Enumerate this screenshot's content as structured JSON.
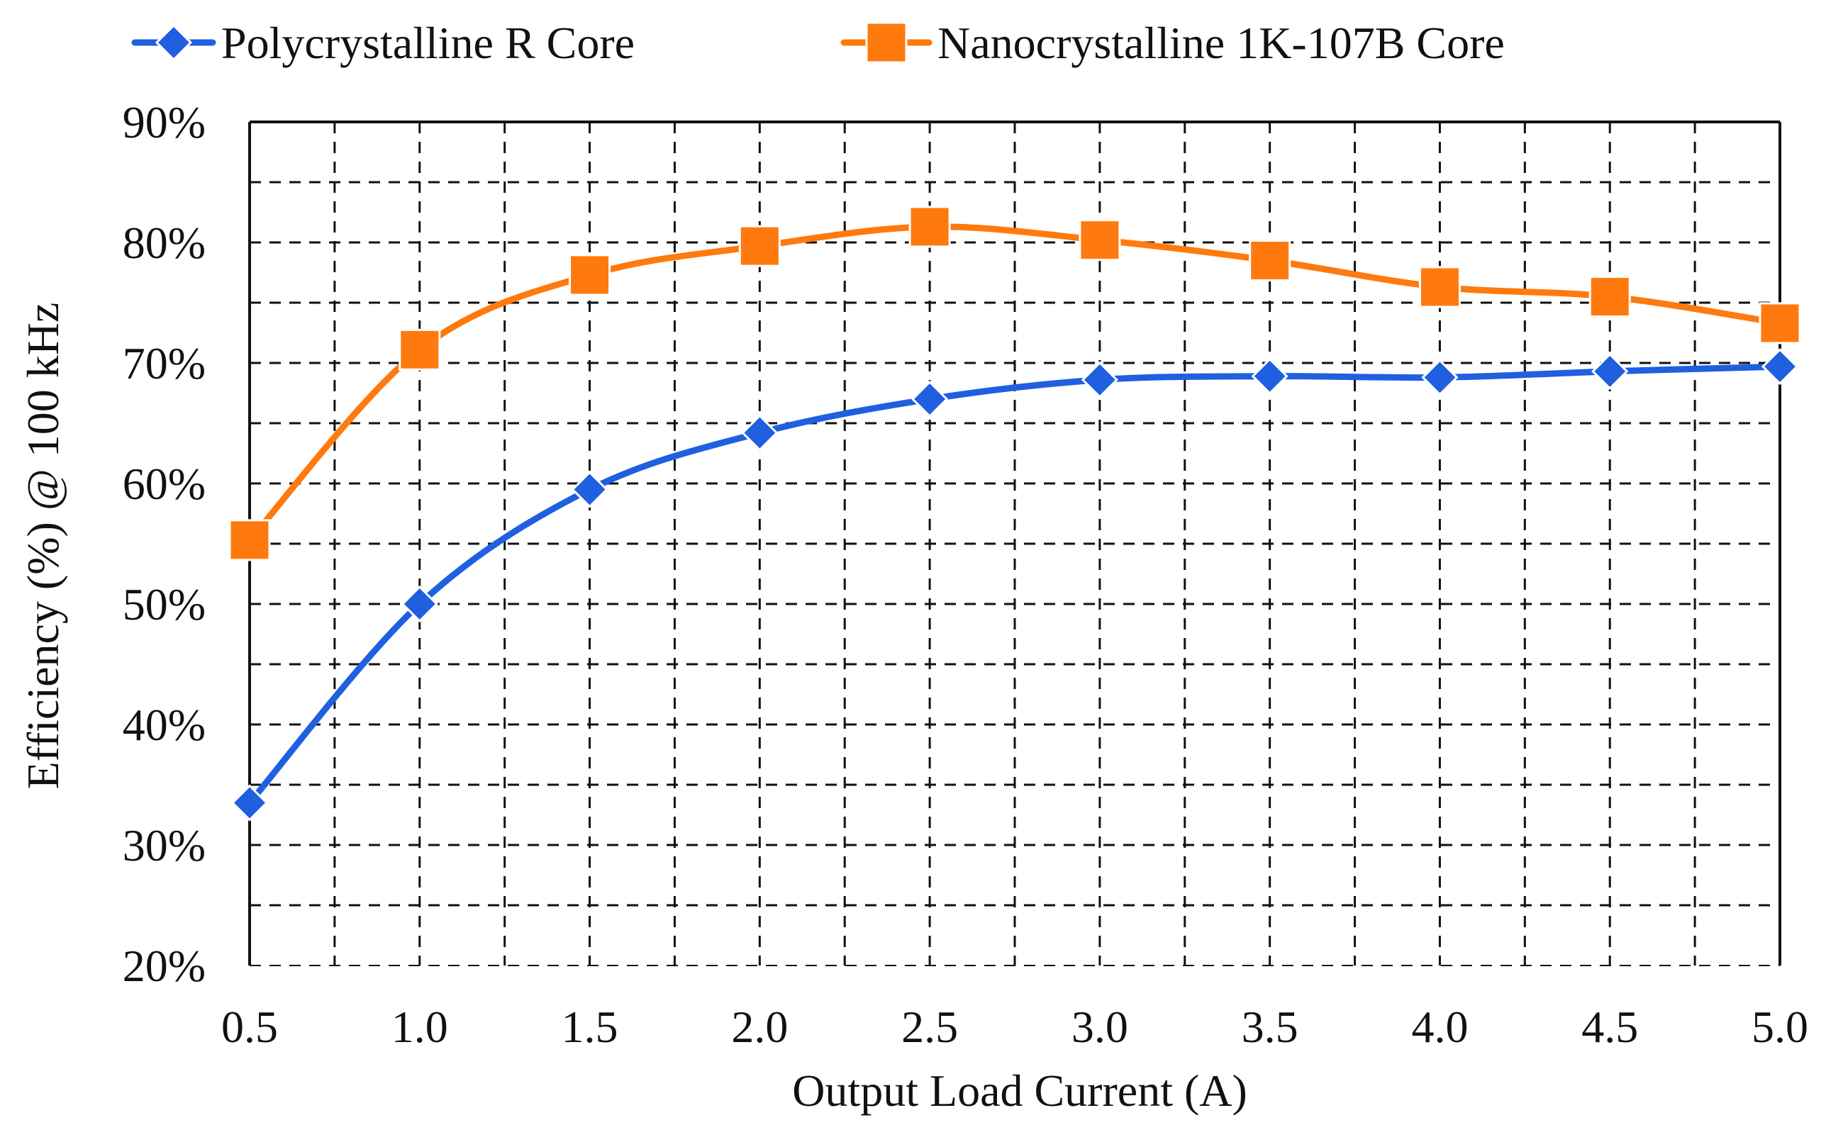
{
  "chart_data": {
    "type": "line",
    "title": "",
    "xlabel": "Output Load Current (A)",
    "ylabel": "Efficiency (%) @ 100 kHz",
    "x": [
      0.5,
      1.0,
      1.5,
      2.0,
      2.5,
      3.0,
      3.5,
      4.0,
      4.5,
      5.0
    ],
    "x_tick_labels": [
      "0.5",
      "1.0",
      "1.5",
      "2.0",
      "2.5",
      "3.0",
      "3.5",
      "4.0",
      "4.5",
      "5.0"
    ],
    "xlim": [
      0.5,
      5.0
    ],
    "ylim": [
      20,
      90
    ],
    "y_ticks": [
      20,
      30,
      40,
      50,
      60,
      70,
      80,
      90
    ],
    "y_tick_labels": [
      "20%",
      "30%",
      "40%",
      "50%",
      "60%",
      "70%",
      "80%",
      "90%"
    ],
    "grid": "dashed, every 0.25 A and 5%",
    "legend_position": "top",
    "series": [
      {
        "name": "Polycrystalline R Core",
        "color": "#1f5fe0",
        "marker": "diamond",
        "values": [
          33.5,
          50.0,
          59.5,
          64.2,
          67.0,
          68.6,
          68.9,
          68.8,
          69.3,
          69.7
        ]
      },
      {
        "name": "Nanocrystalline 1K-107B Core",
        "color": "#ff7a0e",
        "marker": "square",
        "values": [
          55.3,
          71.1,
          77.3,
          79.7,
          81.3,
          80.2,
          78.5,
          76.3,
          75.5,
          73.3
        ]
      }
    ]
  }
}
